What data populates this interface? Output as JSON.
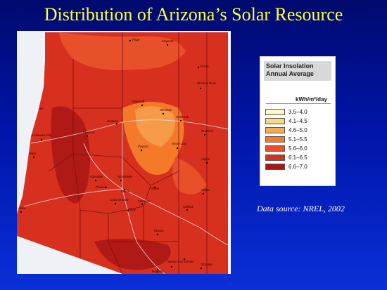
{
  "slide": {
    "title": "Distribution of Arizona’s Solar Resource",
    "data_source": "Data source: NREL, 2002"
  },
  "legend": {
    "title_line1": "Solar Insolation",
    "title_line2": "Annual Average",
    "unit": "kWh/m²/day",
    "classes": [
      {
        "label": "3.5–4.0",
        "color": "#fdf7c4"
      },
      {
        "label": "4.1–4.5",
        "color": "#fbd77f"
      },
      {
        "label": "4.6–5.0",
        "color": "#f7aa55"
      },
      {
        "label": "5.1–5.5",
        "color": "#f47a2a"
      },
      {
        "label": "5.6–6.0",
        "color": "#e8502a"
      },
      {
        "label": "6.1–6.5",
        "color": "#d8301e"
      },
      {
        "label": "6.6–7.0",
        "color": "#a81616"
      }
    ]
  },
  "map": {
    "cities": [
      "Page",
      "Kayenta",
      "Chinle",
      "Window Rock",
      "Kingman",
      "Flagstaff",
      "Winslow",
      "Holbrook",
      "St Johns",
      "Lake Havasu City",
      "Prescott",
      "Sedona",
      "Payson",
      "Show Low",
      "Parker",
      "Alpine",
      "Glendale",
      "Scottsdale",
      "Phoenix",
      "Mesa",
      "Globe",
      "Clifton",
      "Casa Grande",
      "Safford",
      "Florence",
      "Eloy",
      "Yuma",
      "Tucson",
      "Bisbee",
      "Nogales",
      "Santa Cruz",
      "Douglas"
    ]
  }
}
